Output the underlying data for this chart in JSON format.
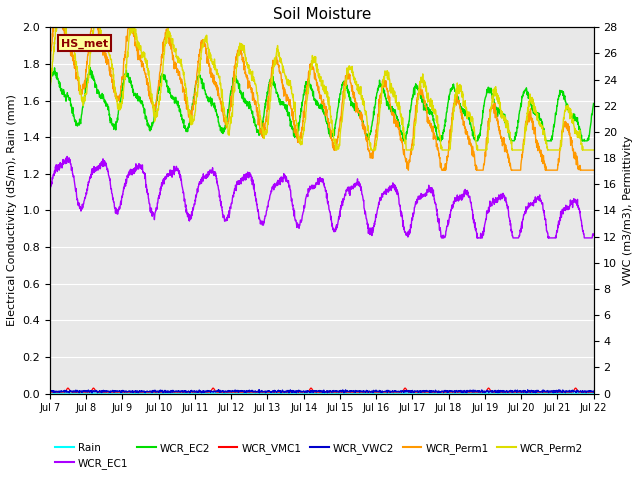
{
  "title": "Soil Moisture",
  "ylabel_left": "Electrical Conductivity (dS/m), Rain (mm)",
  "ylabel_right": "VWC (m3/m3), Permittivity",
  "xlim": [
    0,
    15
  ],
  "ylim_left": [
    0.0,
    2.0
  ],
  "ylim_right": [
    0,
    28
  ],
  "x_tick_labels": [
    "Jul 7",
    "Jul 8",
    "Jul 9",
    "Jul 10",
    "Jul 11",
    "Jul 12",
    "Jul 13",
    "Jul 14",
    "Jul 15",
    "Jul 16",
    "Jul 17",
    "Jul 18",
    "Jul 19",
    "Jul 20",
    "Jul 21",
    "Jul 22"
  ],
  "station_label": "HS_met",
  "colors": {
    "Rain": "#00ffff",
    "WCR_EC1": "#aa00ff",
    "WCR_EC2": "#00dd00",
    "WCR_VMC1": "#ff0000",
    "WCR_VWC2": "#0000cc",
    "WCR_Perm1": "#ff9900",
    "WCR_Perm2": "#dddd00"
  },
  "background_color": "#e8e8e8",
  "title_fontsize": 11,
  "axis_fontsize": 8,
  "tick_fontsize": 8
}
